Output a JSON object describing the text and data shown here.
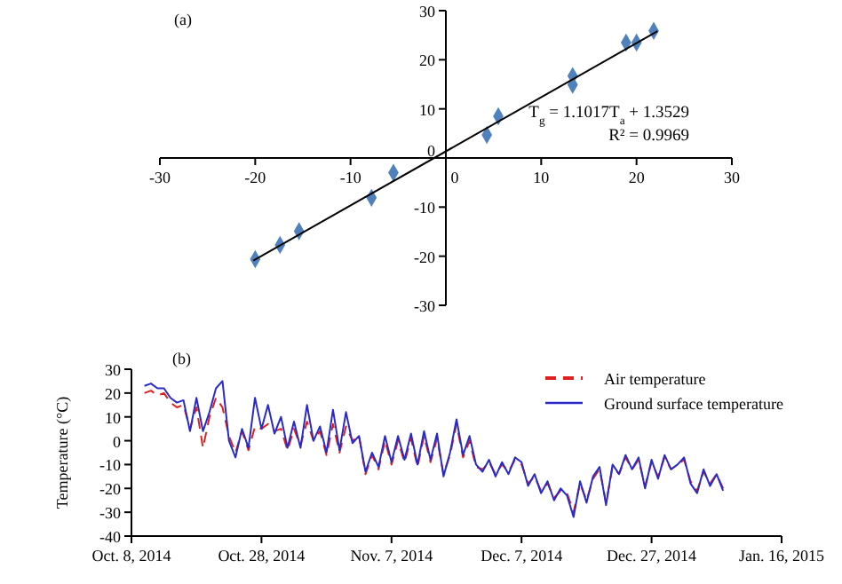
{
  "chart_data": [
    {
      "type": "scatter",
      "title": "(a)",
      "xlim": [
        -30,
        30
      ],
      "ylim": [
        -30,
        30
      ],
      "xticks": [
        -30,
        -20,
        -10,
        0,
        10,
        20,
        30
      ],
      "yticks": [
        -30,
        -20,
        -10,
        0,
        10,
        20,
        30
      ],
      "grid": false,
      "legend": false,
      "annotations": [
        "T$_{g}$ = 1.1017T$_{a}$ + 1.3529",
        "R² = 0.9969"
      ],
      "series": [
        {
          "color": "#4f81bd",
          "marker": "diamond",
          "x": [
            -20.0,
            -17.4,
            -15.4,
            -7.8,
            -5.5,
            4.3,
            5.5,
            13.3,
            13.3,
            18.9,
            20.0,
            21.8
          ],
          "values": [
            -20.6,
            -17.7,
            -14.9,
            -8.1,
            -3.0,
            4.7,
            8.5,
            16.7,
            14.9,
            23.5,
            23.5,
            25.9
          ]
        },
        {
          "type": "line",
          "color": "#000000",
          "marker": "none",
          "x": [
            -20.2,
            22.2
          ],
          "values": [
            -20.9,
            25.8
          ]
        }
      ]
    },
    {
      "type": "line",
      "title": "(b)",
      "ylabel": "Temperature (°C)",
      "ylim": [
        -40,
        30
      ],
      "yticks": [
        -40,
        -30,
        -20,
        -10,
        0,
        10,
        20,
        30
      ],
      "categories": [
        "Oct. 8, 2014",
        null,
        null,
        null,
        null,
        null,
        null,
        null,
        null,
        null,
        null,
        null,
        null,
        null,
        null,
        null,
        null,
        null,
        null,
        null,
        "Oct. 28, 2014",
        null,
        null,
        null,
        null,
        null,
        null,
        null,
        null,
        null,
        null,
        null,
        null,
        null,
        null,
        null,
        null,
        null,
        null,
        null,
        "Nov. 7, 2014",
        null,
        null,
        null,
        null,
        null,
        null,
        null,
        null,
        null,
        null,
        null,
        null,
        null,
        null,
        null,
        null,
        null,
        null,
        null,
        "Dec. 7, 2014",
        null,
        null,
        null,
        null,
        null,
        null,
        null,
        null,
        null,
        null,
        null,
        null,
        null,
        null,
        null,
        null,
        null,
        null,
        null,
        "Dec. 27, 2014",
        null,
        null,
        null,
        null,
        null,
        null,
        null,
        null,
        null,
        null,
        null,
        null,
        null,
        null,
        null,
        null,
        null,
        null,
        null,
        "Jan. 16, 2015"
      ],
      "grid": false,
      "legend": "top right",
      "marker": "none",
      "series": [
        {
          "name": "Air temperature",
          "color": "#e02020",
          "line_style": "dashed",
          "values": [
            null,
            null,
            20,
            21,
            19,
            20,
            16,
            14,
            15,
            5,
            14,
            -3,
            10,
            18,
            14,
            2,
            -5,
            4,
            -4,
            6,
            5,
            7,
            4,
            5,
            -4,
            5,
            -2,
            8,
            0,
            4,
            -6,
            7,
            -5,
            6,
            0,
            2,
            -14,
            -6,
            -12,
            0,
            -10,
            0,
            -9,
            1,
            -11,
            2,
            -9,
            1,
            -14,
            -6,
            7,
            -7,
            0,
            -11,
            -12,
            -9,
            -14,
            -10,
            -13,
            -8,
            -10,
            -18,
            -15,
            -21,
            -18,
            -24,
            -21,
            -22,
            -30,
            -18,
            -25,
            -16,
            -12,
            -26,
            -11,
            -14,
            -7,
            -12,
            -8,
            -19,
            -9,
            -15,
            -7,
            -12,
            -10,
            -8,
            -17,
            -21,
            -13,
            -18,
            -14,
            -20,
            null,
            null,
            null,
            null,
            null,
            null,
            null,
            null,
            null
          ]
        },
        {
          "name": "Ground surface  temperature",
          "color": "#2a2ac8",
          "line_style": "solid",
          "values": [
            null,
            null,
            23,
            24,
            22,
            22,
            18,
            16,
            17,
            4,
            18,
            4,
            12,
            22,
            25,
            0,
            -7,
            5,
            -3,
            18,
            5,
            15,
            3,
            10,
            -3,
            8,
            -3,
            15,
            0,
            6,
            -5,
            13,
            -4,
            12,
            -1,
            2,
            -13,
            -5,
            -11,
            2,
            -9,
            2,
            -8,
            3,
            -10,
            4,
            -8,
            3,
            -15,
            -5,
            9,
            -6,
            2,
            -10,
            -13,
            -8,
            -15,
            -9,
            -14,
            -7,
            -9,
            -19,
            -14,
            -22,
            -17,
            -25,
            -20,
            -23,
            -32,
            -17,
            -26,
            -15,
            -11,
            -27,
            -10,
            -14,
            -6,
            -12,
            -7,
            -20,
            -8,
            -16,
            -6,
            -12,
            -10,
            -7,
            -18,
            -22,
            -12,
            -19,
            -14,
            -21,
            null,
            null,
            null,
            null,
            null,
            null,
            null,
            null,
            null
          ]
        }
      ]
    }
  ]
}
